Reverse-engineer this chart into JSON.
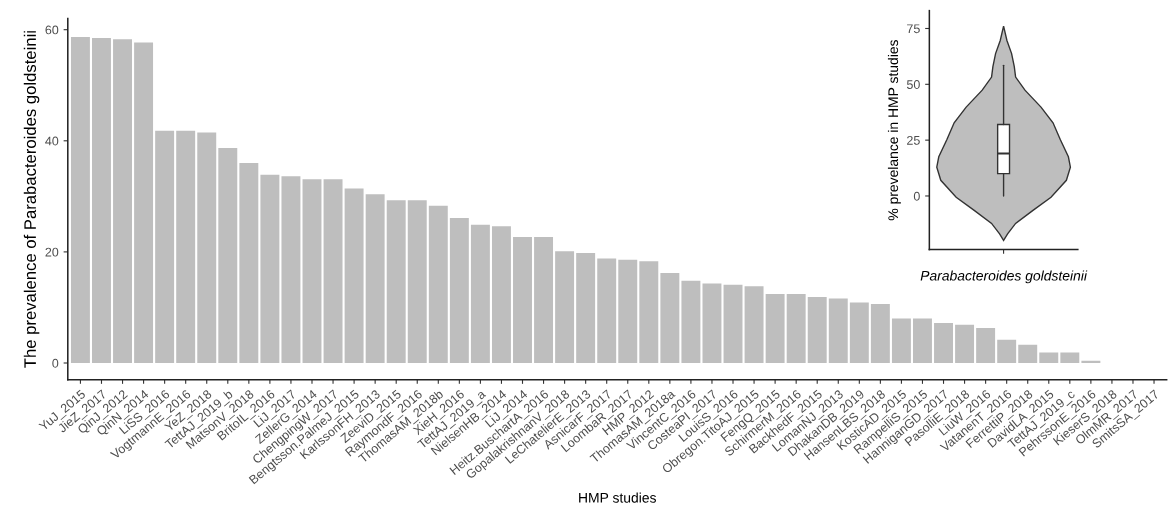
{
  "chart_data": [
    {
      "type": "bar",
      "xlabel": "HMP studies",
      "ylabel": "The prevalence of Parabacteroides goldsteinii",
      "categories": [
        "YuJ_2015",
        "JieZ_2017",
        "QinJ_2012",
        "QinN_2014",
        "LiSS_2016",
        "VogtmannE_2016",
        "YeZ_2018",
        "TettAJ_2019_b",
        "MatsonV_2018",
        "BritoIL_2016",
        "LiJ_2017",
        "ZellerG_2014",
        "ChengpingW_2017",
        "Bengtsson.PalmeJ_2015",
        "KarlssonFH_2013",
        "ZeeviD_2015",
        "RaymondF_2016",
        "ThomasAM_2018b",
        "XieH_2016",
        "TettAJ_2019_a",
        "NielsenHB_2014",
        "LiJ_2014",
        "Heitz.BuschartA_2016",
        "GopalakrishnanV_2018",
        "LeChatelierE_2013",
        "AsnicarF_2017",
        "LoombaR_2017",
        "HMP_2012",
        "ThomasAM_2018a",
        "VincentC_2016",
        "CosteaPI_2017",
        "LouisS_2016",
        "Obregon.TitoAJ_2015",
        "FengQ_2015",
        "SchirmerM_2016",
        "BackhedF_2015",
        "LomanNJ_2013",
        "DhakanDB_2019",
        "HansenLBS_2018",
        "KosticAD_2015",
        "RampelliS_2015",
        "HanniganGD_2017",
        "PasolliE_2018",
        "LiuW_2016",
        "VatanenT_2016",
        "FerrettiP_2018",
        "DavidLA_2015",
        "TettAJ_2019_c",
        "PehrssonE_2016",
        "KieserS_2018",
        "OlmMR_2017",
        "SmitsSA_2017"
      ],
      "values": [
        58.7,
        58.5,
        58.3,
        57.7,
        41.8,
        41.8,
        41.5,
        38.7,
        36.0,
        33.9,
        33.6,
        33.1,
        33.1,
        31.4,
        30.4,
        29.3,
        29.3,
        28.3,
        26.1,
        24.9,
        24.6,
        22.7,
        22.7,
        20.1,
        19.8,
        18.8,
        18.6,
        18.3,
        16.2,
        14.8,
        14.3,
        14.1,
        13.8,
        12.4,
        12.4,
        11.9,
        11.6,
        10.9,
        10.6,
        8.0,
        8.0,
        7.2,
        6.9,
        6.3,
        4.2,
        3.3,
        1.9,
        1.9,
        0.4,
        0,
        0,
        0
      ],
      "color": "#bebebe",
      "ylim": [
        -3,
        62
      ],
      "yticks": [
        0,
        20,
        40,
        60
      ],
      "grid": false,
      "legend": false
    },
    {
      "type": "box",
      "ylabel": "% prevelance in HMP studies",
      "categories": [
        "Parabacteroides goldsteinii"
      ],
      "boxes": [
        {
          "low": 0,
          "q1": 10,
          "median": 19,
          "q3": 32,
          "high": 58.5
        }
      ],
      "ylim": [
        -24,
        83
      ],
      "yticks": [
        0,
        25,
        50,
        75
      ],
      "grid": false,
      "legend": false
    }
  ]
}
